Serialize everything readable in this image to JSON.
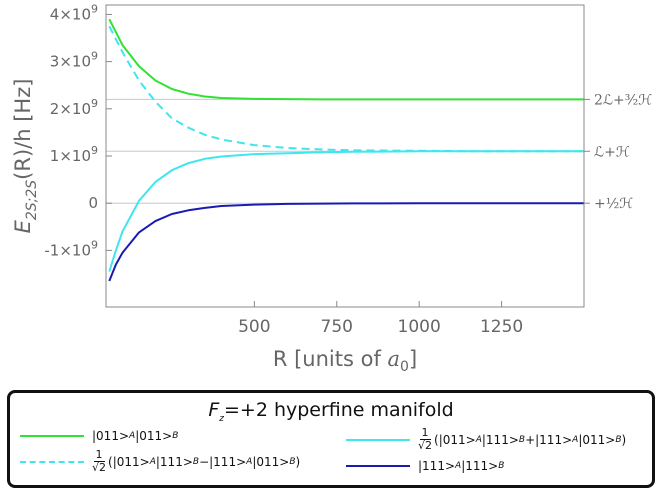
{
  "chart_data": {
    "type": "line",
    "xlabel": "R [units of a₀]",
    "xlabel_main": "R [units of ",
    "xlabel_sym": "a",
    "xlabel_sub": "0",
    "xlabel_end": "]",
    "ylabel": "E2S;2S(R)/h [Hz]",
    "ylabel_main": "E",
    "ylabel_sub": "2S;2S",
    "ylabel_rest": "(R)/h [Hz]",
    "xlim": [
      50,
      1500
    ],
    "ylim": [
      -2200000000.0,
      4200000000.0
    ],
    "x_ticks": [
      500,
      750,
      1000,
      1250
    ],
    "x_tick_labels": [
      "500",
      "750",
      "1000",
      "1250"
    ],
    "y_ticks": [
      -1000000000.0,
      0,
      1000000000.0,
      2000000000.0,
      3000000000.0,
      4000000000.0
    ],
    "y_tick_labels": [
      "-1×10",
      "0",
      "1×10",
      "2×10",
      "3×10",
      "4×10"
    ],
    "y_tick_exponents": [
      "9",
      "",
      "9",
      "9",
      "9",
      "9"
    ],
    "asymptotes": [
      {
        "value": 2200000000.0,
        "label": "2ℒ+³⁄₂ℋ"
      },
      {
        "value": 1100000000.0,
        "label": "ℒ+ℋ"
      },
      {
        "value": 0,
        "label": "+½ℋ"
      }
    ],
    "series": [
      {
        "name": "|011>A|011>B",
        "color": "#33e033",
        "dash": false,
        "x": [
          60,
          100,
          150,
          200,
          250,
          300,
          350,
          400,
          500,
          600,
          700,
          800,
          1000,
          1200,
          1500
        ],
        "y": [
          3900000000.0,
          3350000000.0,
          2900000000.0,
          2600000000.0,
          2420000000.0,
          2320000000.0,
          2260000000.0,
          2230000000.0,
          2210000000.0,
          2205000000.0,
          2200000000.0,
          2200000000.0,
          2200000000.0,
          2200000000.0,
          2200000000.0
        ]
      },
      {
        "name": "(1/√2)(|011>A|111>B−|111>A|011>B)",
        "color": "#3fe6ee",
        "dash": true,
        "x": [
          60,
          100,
          150,
          200,
          250,
          300,
          350,
          400,
          500,
          600,
          700,
          800,
          1000,
          1200,
          1500
        ],
        "y": [
          3750000000.0,
          3200000000.0,
          2600000000.0,
          2150000000.0,
          1800000000.0,
          1600000000.0,
          1450000000.0,
          1350000000.0,
          1230000000.0,
          1170000000.0,
          1140000000.0,
          1120000000.0,
          1110000000.0,
          1100000000.0,
          1100000000.0
        ]
      },
      {
        "name": "(1/√2)(|011>A|111>B+|111>A|011>B)",
        "color": "#3fe6ee",
        "dash": false,
        "x": [
          60,
          80,
          100,
          150,
          200,
          250,
          300,
          350,
          400,
          500,
          600,
          700,
          800,
          1000,
          1200,
          1500
        ],
        "y": [
          -1450000000.0,
          -1000000000.0,
          -600000000.0,
          50000000.0,
          450000000.0,
          700000000.0,
          850000000.0,
          940000000.0,
          990000000.0,
          1040000000.0,
          1060000000.0,
          1080000000.0,
          1090000000.0,
          1100000000.0,
          1100000000.0,
          1100000000.0
        ]
      },
      {
        "name": "|111>A|111>B",
        "color": "#1a1ab3",
        "dash": false,
        "x": [
          60,
          80,
          100,
          150,
          200,
          250,
          300,
          350,
          400,
          500,
          600,
          700,
          800,
          1000,
          1200,
          1500
        ],
        "y": [
          -1650000000.0,
          -1300000000.0,
          -1050000000.0,
          -620000000.0,
          -380000000.0,
          -230000000.0,
          -150000000.0,
          -100000000.0,
          -60000000.0,
          -30000000.0,
          -15000000.0,
          -8000000.0,
          -4000000.0,
          0,
          0,
          0
        ]
      }
    ]
  },
  "legend": {
    "title_main": "F",
    "title_sub": "z",
    "title_rest": "=+2 hyperfine manifold",
    "frac_num": "1",
    "frac_den": "√2",
    "item1": "|011>",
    "item1_a": "A",
    "item1_b": "|011>",
    "item1_c": "B",
    "item2_text": "(|011>",
    "item2_a": "A",
    "item2_mid": "|111>",
    "item2_b": "B",
    "item2_op": "−|111>",
    "item2_c": "A",
    "item2_end": "|011>",
    "item2_d": "B",
    "item2_close": ")",
    "item3_text": "(|011>",
    "item3_a": "A",
    "item3_mid": "|111>",
    "item3_b": "B",
    "item3_op": "+|111>",
    "item3_c": "A",
    "item3_end": "|011>",
    "item3_d": "B",
    "item3_close": ")",
    "item4": "|111>",
    "item4_a": "A",
    "item4_b": "|111>",
    "item4_c": "B"
  }
}
